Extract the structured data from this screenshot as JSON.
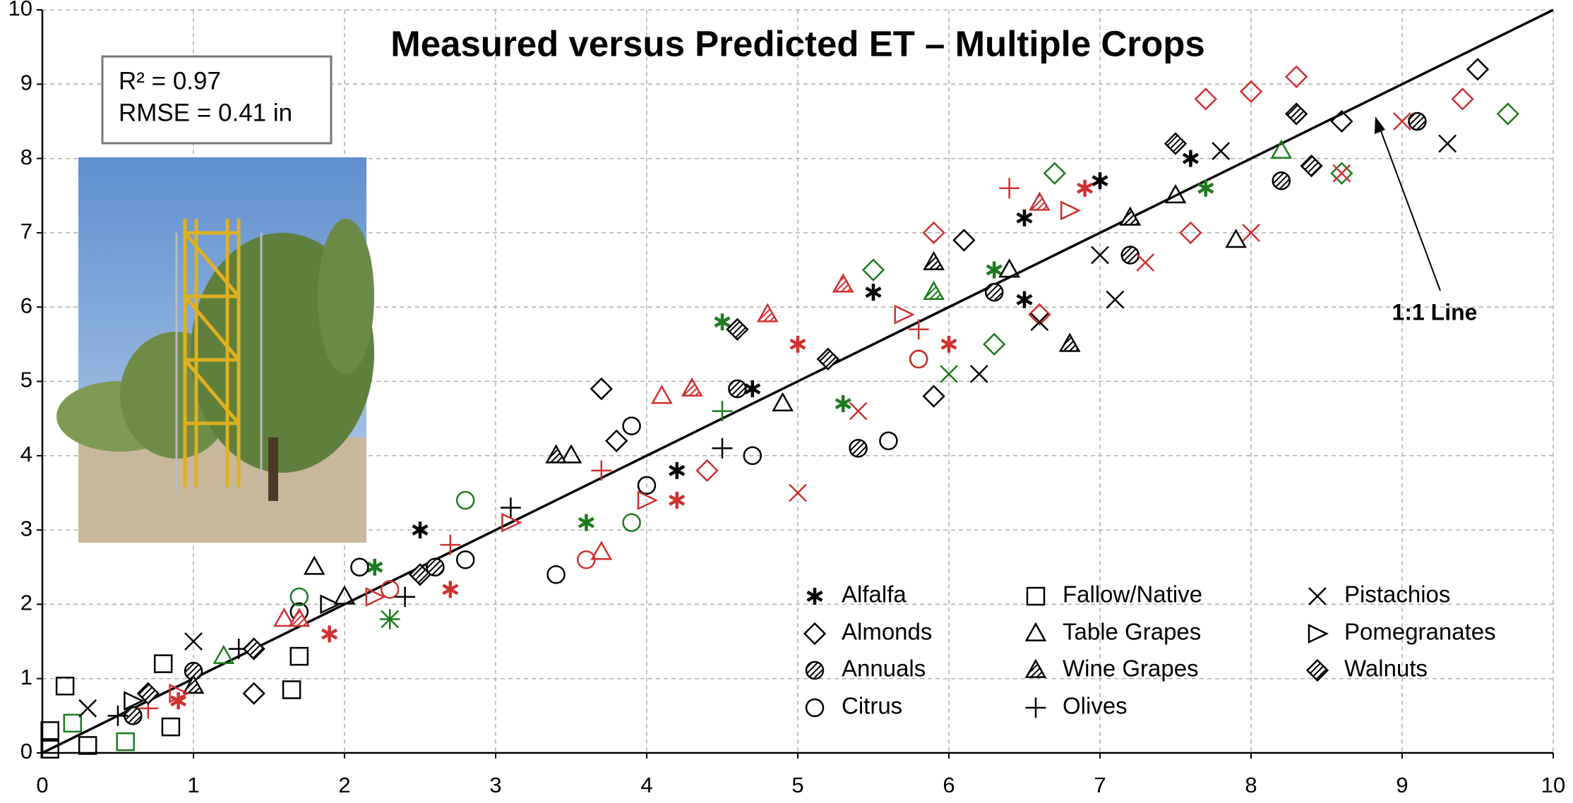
{
  "chart_data": {
    "type": "scatter",
    "title": "Measured versus Predicted ET – Multiple Crops",
    "annotations": {
      "r2": "R² = 0.97",
      "rmse": "RMSE = 0.41 in",
      "line_label": "1:1 Line"
    },
    "xlim": [
      0,
      10
    ],
    "ylim": [
      0,
      10
    ],
    "xticks": [
      0,
      1,
      2,
      3,
      4,
      5,
      6,
      7,
      8,
      9,
      10
    ],
    "yticks": [
      0,
      1,
      2,
      3,
      4,
      5,
      6,
      7,
      8,
      9,
      10
    ],
    "grid": true,
    "reference_line": true,
    "series": [
      {
        "name": "Alfalfa",
        "marker": "asterisk",
        "color": "#000000",
        "x": [
          2.5,
          4.2,
          5.5,
          6.5,
          7.0,
          7.6,
          6.5,
          4.7,
          4.5,
          5.3,
          3.6,
          6.3,
          7.7,
          2.2,
          1.9,
          4.2,
          5.0,
          6.0,
          6.9,
          2.7,
          0.9
        ],
        "y": [
          3.0,
          3.8,
          6.2,
          6.1,
          7.7,
          8.0,
          7.2,
          4.9,
          5.8,
          4.7,
          3.1,
          6.5,
          7.6,
          2.5,
          1.6,
          3.4,
          5.5,
          5.5,
          7.6,
          2.2,
          0.7
        ],
        "colors": [
          "#000000",
          "#000000",
          "#000000",
          "#000000",
          "#000000",
          "#000000",
          "#000000",
          "#000000",
          "#1e7a1e",
          "#1e7a1e",
          "#1e7a1e",
          "#1e7a1e",
          "#1e7a1e",
          "#1e7a1e",
          "#d03030",
          "#d03030",
          "#d03030",
          "#d03030",
          "#d03030",
          "#d03030",
          "#d03030"
        ]
      },
      {
        "name": "Almonds",
        "marker": "diamond",
        "color": "#000000",
        "x": [
          3.7,
          3.8,
          9.5,
          8.6,
          6.1,
          5.9,
          1.4,
          9.7,
          5.5,
          6.7,
          8.6,
          6.3,
          8.3,
          8.0,
          7.7,
          5.9,
          6.6,
          7.6,
          4.4,
          9.4
        ],
        "y": [
          4.9,
          4.2,
          9.2,
          8.5,
          6.9,
          4.8,
          0.8,
          8.6,
          6.5,
          7.8,
          7.8,
          5.5,
          9.1,
          8.9,
          8.8,
          7.0,
          5.9,
          7.0,
          3.8,
          8.8
        ],
        "colors": [
          "#000000",
          "#000000",
          "#000000",
          "#000000",
          "#000000",
          "#000000",
          "#000000",
          "#1e7a1e",
          "#1e7a1e",
          "#1e7a1e",
          "#1e7a1e",
          "#1e7a1e",
          "#d03030",
          "#d03030",
          "#d03030",
          "#d03030",
          "#d03030",
          "#d03030",
          "#d03030",
          "#d03030"
        ]
      },
      {
        "name": "Annuals",
        "marker": "hatched-circle",
        "color": "#000000",
        "x": [
          9.1,
          8.2,
          7.2,
          6.3,
          5.4,
          4.6,
          2.6,
          1.0,
          0.6
        ],
        "y": [
          8.5,
          7.7,
          6.7,
          6.2,
          4.1,
          4.9,
          2.5,
          1.1,
          0.5
        ],
        "colors": [
          "#000000",
          "#000000",
          "#000000",
          "#000000",
          "#000000",
          "#000000",
          "#000000",
          "#000000",
          "#000000"
        ]
      },
      {
        "name": "Citrus",
        "marker": "circle",
        "color": "#000000",
        "x": [
          3.9,
          4.0,
          4.7,
          5.6,
          3.4,
          2.1,
          1.7,
          5.8,
          2.8,
          2.8,
          3.9,
          1.7,
          3.6,
          5.8,
          2.3
        ],
        "y": [
          4.4,
          3.6,
          4.0,
          4.2,
          2.4,
          2.5,
          1.9,
          5.3,
          2.6,
          3.4,
          3.1,
          2.1,
          2.6,
          5.3,
          2.2
        ],
        "colors": [
          "#000000",
          "#000000",
          "#000000",
          "#000000",
          "#000000",
          "#000000",
          "#000000",
          "#000000",
          "#000000",
          "#1e7a1e",
          "#1e7a1e",
          "#1e7a1e",
          "#d03030",
          "#d03030",
          "#d03030"
        ]
      },
      {
        "name": "Fallow/Native",
        "marker": "square",
        "color": "#000000",
        "x": [
          0.15,
          0.05,
          1.7,
          1.65,
          0.85,
          0.8,
          0.3,
          0.05,
          0.55,
          0.2
        ],
        "y": [
          0.9,
          0.3,
          1.3,
          0.85,
          0.35,
          1.2,
          0.1,
          0.05,
          0.15,
          0.4
        ],
        "colors": [
          "#000000",
          "#000000",
          "#000000",
          "#000000",
          "#000000",
          "#000000",
          "#000000",
          "#000000",
          "#1e7a1e",
          "#1e7a1e"
        ]
      },
      {
        "name": "Table Grapes",
        "marker": "triangle",
        "color": "#000000",
        "x": [
          1.8,
          7.9,
          6.4,
          7.5,
          4.9,
          3.5,
          2.0,
          1.2,
          8.2,
          3.7,
          4.1,
          1.6
        ],
        "y": [
          2.5,
          6.9,
          6.5,
          7.5,
          4.7,
          4.0,
          2.1,
          1.3,
          8.1,
          2.7,
          4.8,
          1.8
        ],
        "colors": [
          "#000000",
          "#000000",
          "#000000",
          "#000000",
          "#000000",
          "#000000",
          "#000000",
          "#1e7a1e",
          "#1e7a1e",
          "#d03030",
          "#d03030",
          "#d03030"
        ]
      },
      {
        "name": "Wine Grapes",
        "marker": "hatched-triangle",
        "color": "#000000",
        "x": [
          6.8,
          5.9,
          3.4,
          7.2,
          1.0,
          6.6,
          4.8,
          4.3,
          5.3,
          1.7,
          5.9
        ],
        "y": [
          5.5,
          6.6,
          4.0,
          7.2,
          0.9,
          7.4,
          5.9,
          4.9,
          6.3,
          1.8,
          6.2
        ],
        "colors": [
          "#000000",
          "#000000",
          "#000000",
          "#000000",
          "#000000",
          "#d03030",
          "#d03030",
          "#d03030",
          "#d03030",
          "#d03030",
          "#1e7a1e"
        ]
      },
      {
        "name": "Olives",
        "marker": "plus",
        "color": "#000000",
        "x": [
          0.5,
          1.3,
          2.4,
          3.1,
          4.5,
          6.4,
          5.8,
          3.7,
          2.7,
          0.7,
          2.3,
          4.5
        ],
        "y": [
          0.5,
          1.4,
          2.1,
          3.3,
          4.1,
          7.6,
          5.7,
          3.8,
          2.8,
          0.6,
          1.8,
          4.6
        ],
        "colors": [
          "#000000",
          "#000000",
          "#000000",
          "#000000",
          "#000000",
          "#d03030",
          "#d03030",
          "#d03030",
          "#d03030",
          "#d03030",
          "#1e7a1e",
          "#1e7a1e"
        ]
      },
      {
        "name": "Pistachios",
        "marker": "cross",
        "color": "#000000",
        "x": [
          6.2,
          7.1,
          7.0,
          9.3,
          7.8,
          0.3,
          1.0,
          6.6,
          8.0,
          5.0,
          8.6,
          9.0,
          5.4,
          7.3,
          2.3,
          6.0
        ],
        "y": [
          5.1,
          6.1,
          6.7,
          8.2,
          8.1,
          0.6,
          1.5,
          5.8,
          7.0,
          3.5,
          7.8,
          8.5,
          4.6,
          6.6,
          1.8,
          5.1
        ],
        "colors": [
          "#000000",
          "#000000",
          "#000000",
          "#000000",
          "#000000",
          "#000000",
          "#000000",
          "#000000",
          "#d03030",
          "#d03030",
          "#d03030",
          "#d03030",
          "#d03030",
          "#d03030",
          "#1e7a1e",
          "#1e7a1e"
        ]
      },
      {
        "name": "Pomegranates",
        "marker": "right-triangle",
        "color": "#000000",
        "x": [
          2.2,
          4.0,
          6.8,
          5.7,
          3.1,
          0.9,
          1.9,
          0.6
        ],
        "y": [
          2.1,
          3.4,
          7.3,
          5.9,
          3.1,
          0.8,
          2.0,
          0.7
        ],
        "colors": [
          "#d03030",
          "#d03030",
          "#d03030",
          "#d03030",
          "#d03030",
          "#d03030",
          "#000000",
          "#000000"
        ]
      },
      {
        "name": "Walnuts",
        "marker": "hatched-diamond",
        "color": "#000000",
        "x": [
          8.3,
          8.4,
          4.6,
          7.5,
          5.2,
          2.5,
          1.4,
          0.7
        ],
        "y": [
          8.6,
          7.9,
          5.7,
          8.2,
          5.3,
          2.4,
          1.4,
          0.8
        ],
        "colors": [
          "#000000",
          "#000000",
          "#000000",
          "#000000",
          "#000000",
          "#000000",
          "#000000",
          "#000000"
        ]
      }
    ]
  }
}
